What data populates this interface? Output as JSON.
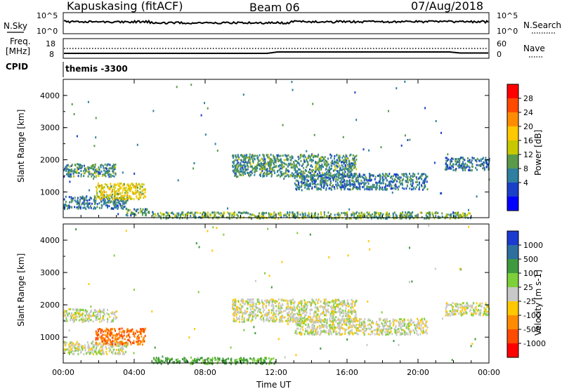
{
  "header": {
    "station": "Kapuskasing (fitACF)",
    "beam": "Beam 06",
    "date": "07/Aug/2018"
  },
  "top_panels": {
    "nsky_label": "N.Sky",
    "nsearch_label": "N.Search",
    "nsky_ticks": [
      "10^5",
      "10^0"
    ],
    "freq_label_1": "Freq.",
    "freq_label_2": "[MHz]",
    "freq_ticks": [
      "18",
      "8"
    ],
    "nave_label": "Nave",
    "nave_ticks": [
      "60",
      "0"
    ],
    "cpid_label": "CPID",
    "cpid_value": "themis -3300"
  },
  "x_axis": {
    "label": "Time UT",
    "ticks": [
      "00:00",
      "04:00",
      "08:00",
      "12:00",
      "16:00",
      "20:00",
      "00:00"
    ]
  },
  "power_colorbar": {
    "label": "Power [dB]",
    "ticks": [
      "28",
      "24",
      "20",
      "16",
      "12",
      "8",
      "4"
    ],
    "colors": [
      "#ff0000",
      "#ff4a00",
      "#ff8c00",
      "#ffc800",
      "#c8c800",
      "#5a9a4a",
      "#2e7fa0",
      "#1a3fc8",
      "#0000ff"
    ]
  },
  "velocity_colorbar": {
    "label": "Velocity [m s-1]",
    "ticks": [
      "1000",
      "500",
      "100",
      "25",
      "-25",
      "-100",
      "-500",
      "-1000"
    ],
    "colors": [
      "#1a3ad0",
      "#2e6fa0",
      "#3f9a3f",
      "#7ed03a",
      "#c8c8c8",
      "#ffc800",
      "#ff8c00",
      "#ff4a00",
      "#ff0000"
    ]
  },
  "chart_data": [
    {
      "type": "heatmap",
      "title": "Power",
      "ylabel": "Slant Range [km]",
      "xlabel": "",
      "y_ticks": [
        "4000",
        "3000",
        "2000",
        "1000"
      ],
      "xlim": [
        0,
        24
      ],
      "ylim": [
        200,
        4500
      ],
      "echo_regions": [
        {
          "t0": 0.0,
          "t1": 3.6,
          "r0": 500,
          "r1": 900,
          "level": 8
        },
        {
          "t0": 0.0,
          "t1": 3.0,
          "r0": 1500,
          "r1": 1900,
          "level": 10
        },
        {
          "t0": 1.8,
          "t1": 4.6,
          "r0": 800,
          "r1": 1300,
          "level": 18
        },
        {
          "t0": 3.5,
          "t1": 5.0,
          "r0": 300,
          "r1": 500,
          "level": 10
        },
        {
          "t0": 5.0,
          "t1": 23.0,
          "r0": 200,
          "r1": 400,
          "level": 12
        },
        {
          "t0": 9.5,
          "t1": 16.5,
          "r0": 1500,
          "r1": 2200,
          "level": 10
        },
        {
          "t0": 13.0,
          "t1": 20.5,
          "r0": 1100,
          "r1": 1600,
          "level": 8
        },
        {
          "t0": 21.5,
          "t1": 24.0,
          "r0": 1700,
          "r1": 2100,
          "level": 8
        }
      ]
    },
    {
      "type": "heatmap",
      "title": "Velocity",
      "ylabel": "Slant Range [km]",
      "xlabel": "Time UT",
      "y_ticks": [
        "4000",
        "3000",
        "2000",
        "1000"
      ],
      "xlim": [
        0,
        24
      ],
      "ylim": [
        200,
        4500
      ],
      "echo_regions": [
        {
          "t0": 0.0,
          "t1": 3.6,
          "r0": 500,
          "r1": 900,
          "vel": 0
        },
        {
          "t0": 0.0,
          "t1": 3.0,
          "r0": 1500,
          "r1": 1900,
          "vel": 0
        },
        {
          "t0": 1.8,
          "t1": 4.6,
          "r0": 800,
          "r1": 1300,
          "vel": -300
        },
        {
          "t0": 5.0,
          "t1": 12.0,
          "r0": 200,
          "r1": 400,
          "vel": 80
        },
        {
          "t0": 9.5,
          "t1": 16.5,
          "r0": 1500,
          "r1": 2200,
          "vel": 0
        },
        {
          "t0": 13.0,
          "t1": 20.5,
          "r0": 1100,
          "r1": 1600,
          "vel": 0
        },
        {
          "t0": 21.5,
          "t1": 24.0,
          "r0": 1700,
          "r1": 2100,
          "vel": 0
        }
      ]
    }
  ]
}
